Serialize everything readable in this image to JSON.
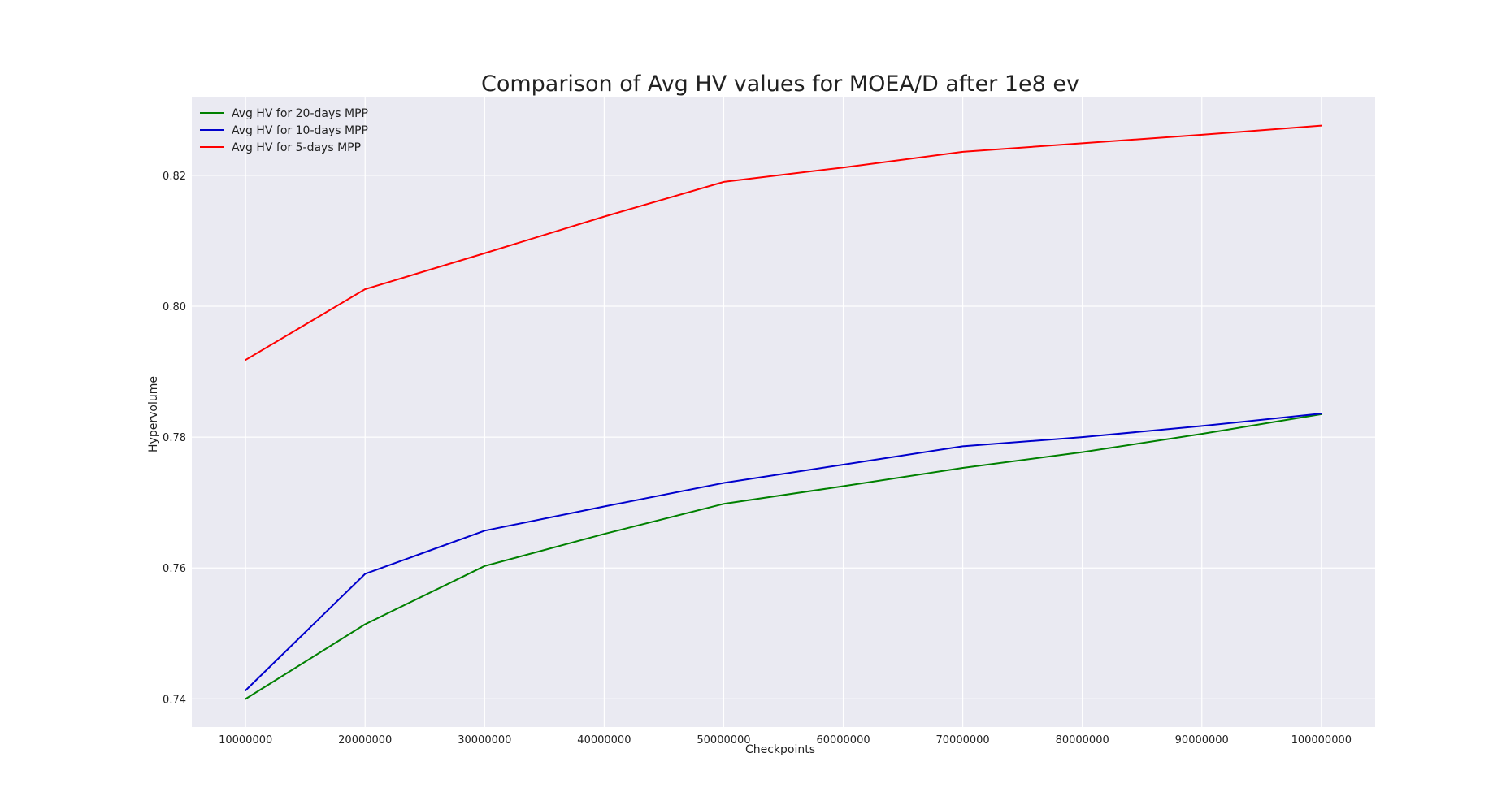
{
  "chart_data": {
    "type": "line",
    "title": "Comparison of Avg HV values for MOEA/D after 1e8 ev",
    "xlabel": "Checkpoints",
    "ylabel": "Hypervolume",
    "x": [
      10000000,
      20000000,
      30000000,
      40000000,
      50000000,
      60000000,
      70000000,
      80000000,
      90000000,
      100000000
    ],
    "x_tick_labels": [
      "10000000",
      "20000000",
      "30000000",
      "40000000",
      "50000000",
      "60000000",
      "70000000",
      "80000000",
      "90000000",
      "100000000"
    ],
    "y_ticks": [
      0.74,
      0.76,
      0.78,
      0.8,
      0.82
    ],
    "y_tick_labels": [
      "0.74",
      "0.76",
      "0.78",
      "0.80",
      "0.82"
    ],
    "xlim": [
      5500000,
      104500000
    ],
    "ylim": [
      0.7357,
      0.8319
    ],
    "grid": true,
    "legend_position": "top-left",
    "background_color": "#eaeaf2",
    "series": [
      {
        "name": "Avg HV for 20-days MPP",
        "color": "#008000",
        "values": [
          0.74,
          0.7514,
          0.7603,
          0.7652,
          0.7698,
          0.7725,
          0.7753,
          0.7777,
          0.7805,
          0.7835
        ]
      },
      {
        "name": "Avg HV for 10-days MPP",
        "color": "#0000cc",
        "values": [
          0.7413,
          0.7591,
          0.7657,
          0.7694,
          0.773,
          0.7758,
          0.7786,
          0.78,
          0.7817,
          0.7836
        ]
      },
      {
        "name": "Avg HV for 5-days MPP",
        "color": "#ff0000",
        "values": [
          0.7918,
          0.8026,
          0.8081,
          0.8137,
          0.819,
          0.8212,
          0.8236,
          0.8249,
          0.8262,
          0.8276
        ]
      }
    ]
  }
}
